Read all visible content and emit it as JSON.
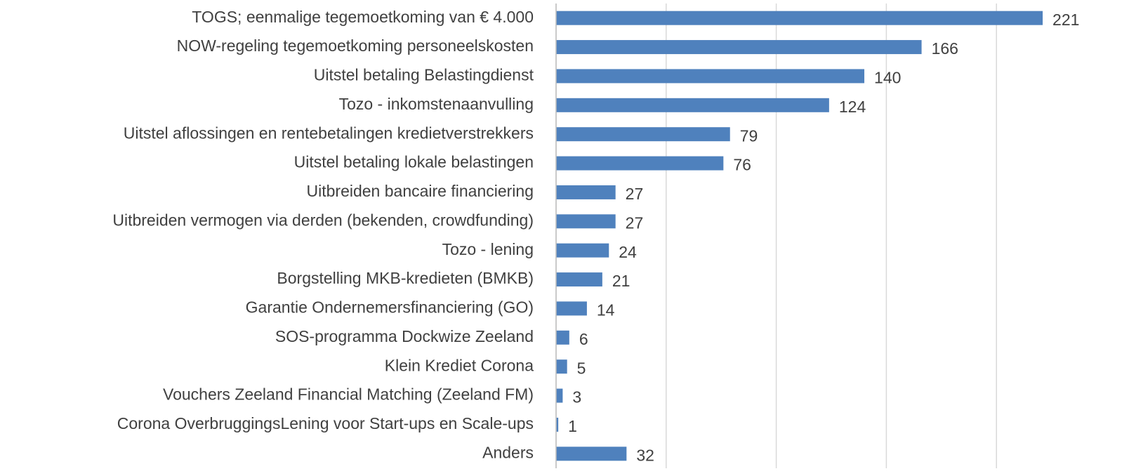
{
  "chart_data": {
    "type": "hbar",
    "categories": [
      "TOGS; eenmalige tegemoetkoming van € 4.000",
      "NOW-regeling tegemoetkoming personeelskosten",
      "Uitstel betaling Belastingdienst",
      "Tozo - inkomstenaanvulling",
      "Uitstel aflossingen en rentebetalingen kredietverstrekkers",
      "Uitstel betaling lokale belastingen",
      "Uitbreiden bancaire financiering",
      "Uitbreiden vermogen via derden (bekenden, crowdfunding)",
      "Tozo - lening",
      "Borgstelling MKB-kredieten (BMKB)",
      "Garantie Ondernemersfinanciering (GO)",
      "SOS-programma Dockwize Zeeland",
      "Klein Krediet Corona",
      "Vouchers Zeeland Financial Matching (Zeeland FM)",
      "Corona OverbruggingsLening voor Start-ups en Scale-ups",
      "Anders"
    ],
    "values": [
      221,
      166,
      140,
      124,
      79,
      76,
      27,
      27,
      24,
      21,
      14,
      6,
      5,
      3,
      1,
      32
    ],
    "color": "#4f81bd",
    "xlim": [
      0,
      250
    ],
    "xticks": [
      0,
      50,
      100,
      150,
      200
    ],
    "grid": true
  }
}
